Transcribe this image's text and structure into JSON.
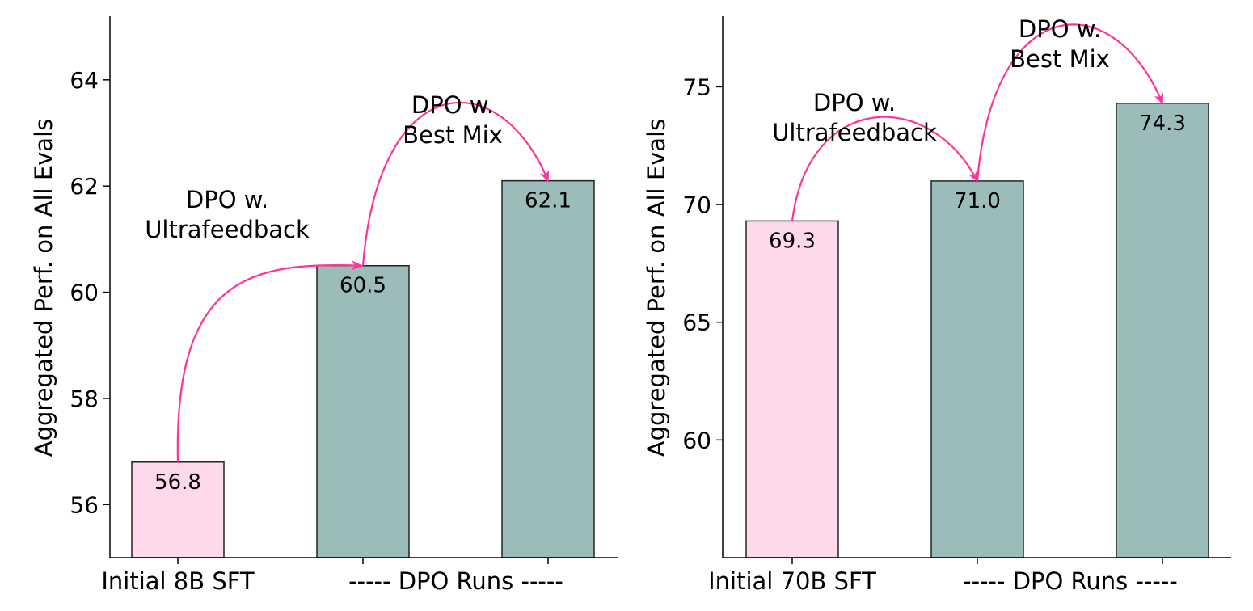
{
  "colors": {
    "sft": "#ffd9eb",
    "dpo": "#9cbbbb",
    "arrow": "#ff3399",
    "edge": "#222222"
  },
  "chart_data": [
    {
      "type": "bar",
      "title": "",
      "ylabel": "Aggregated Perf. on All Evals",
      "ylim": [
        55,
        65.2
      ],
      "yticks": [
        56,
        58,
        60,
        62,
        64
      ],
      "x_labels": [
        "Initial 8B SFT",
        "----- DPO Runs -----"
      ],
      "bars": [
        {
          "value": 56.8,
          "label": "56.8",
          "kind": "sft"
        },
        {
          "value": 60.5,
          "label": "60.5",
          "kind": "dpo"
        },
        {
          "value": 62.1,
          "label": "62.1",
          "kind": "dpo"
        }
      ],
      "annotations": [
        {
          "lines": [
            "DPO w.",
            "Ultrafeedback"
          ],
          "from": 0,
          "to": 1
        },
        {
          "lines": [
            "DPO w.",
            "Best Mix"
          ],
          "from": 1,
          "to": 2
        }
      ],
      "grid": false,
      "legend": "none"
    },
    {
      "type": "bar",
      "title": "",
      "ylabel": "Aggregated Perf. on All Evals",
      "ylim": [
        55,
        78
      ],
      "yticks": [
        60,
        65,
        70,
        75
      ],
      "x_labels": [
        "Initial 70B SFT",
        "----- DPO Runs -----"
      ],
      "bars": [
        {
          "value": 69.3,
          "label": "69.3",
          "kind": "sft"
        },
        {
          "value": 71.0,
          "label": "71.0",
          "kind": "dpo"
        },
        {
          "value": 74.3,
          "label": "74.3",
          "kind": "dpo"
        }
      ],
      "annotations": [
        {
          "lines": [
            "DPO w.",
            "Ultrafeedback"
          ],
          "from": 0,
          "to": 1
        },
        {
          "lines": [
            "DPO w.",
            "Best Mix"
          ],
          "from": 1,
          "to": 2
        }
      ],
      "grid": false,
      "legend": "none"
    }
  ]
}
